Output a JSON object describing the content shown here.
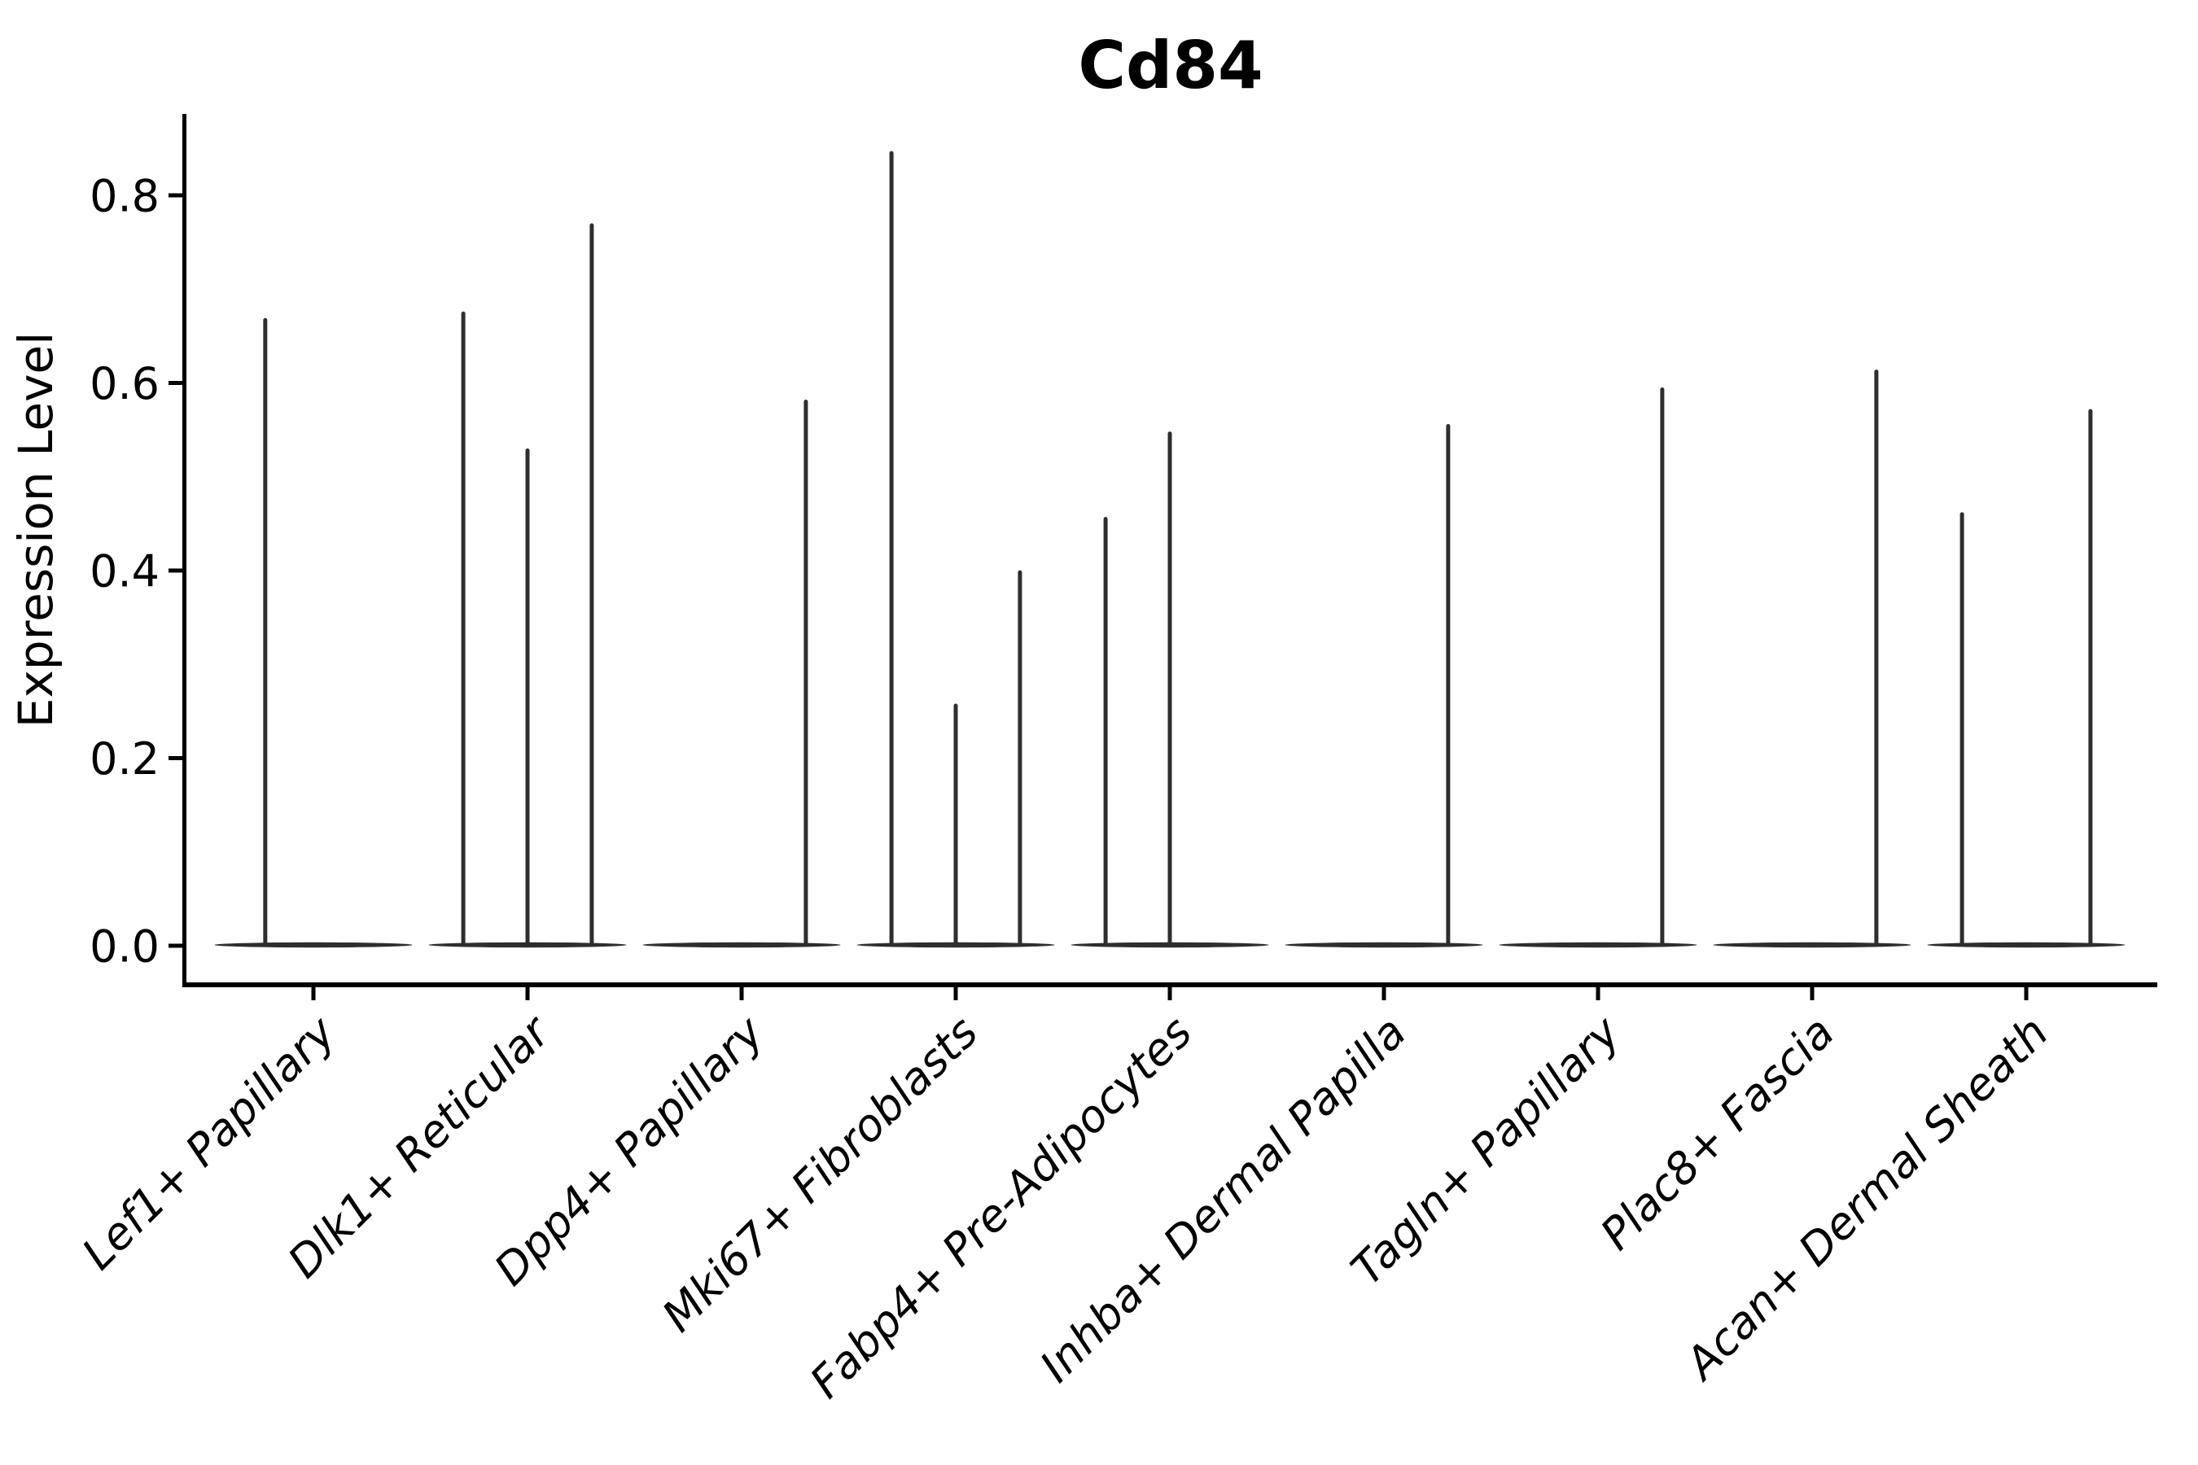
{
  "chart_data": {
    "type": "violin",
    "title": "Cd84",
    "ylabel": "Expression Level",
    "xlabel": "",
    "ylim": [
      0,
      0.887
    ],
    "yticks": [
      "0.0",
      "0.2",
      "0.4",
      "0.6",
      "0.8"
    ],
    "ytick_values": [
      0.0,
      0.2,
      0.4,
      0.6,
      0.8
    ],
    "grid": false,
    "legend_position": "none",
    "violin_color": "#2e2e2e",
    "axis_color": "#000000",
    "background_color": "#ffffff",
    "categories": [
      "Lef1+ Papillary",
      "Dlk1+ Reticular",
      "Dpp4+ Papillary",
      "Mki67+ Fibroblasts",
      "Fabp4+ Pre-Adipocytes",
      "Inhba+ Dermal Papilla",
      "Tagln+ Papillary",
      "Plac8+ Fascia",
      "Acan+ Dermal Sheath"
    ],
    "groups": [
      {
        "label": "Lef1+ Papillary",
        "violins": [
          {
            "pos": -0.225,
            "max": 0.667
          },
          {
            "pos": 0.225,
            "max": 0
          }
        ]
      },
      {
        "label": "Dlk1+ Reticular",
        "violins": [
          {
            "pos": -0.3,
            "max": 0.674
          },
          {
            "pos": 0,
            "max": 0.528
          },
          {
            "pos": 0.3,
            "max": 0.768
          }
        ]
      },
      {
        "label": "Dpp4+ Papillary",
        "violins": [
          {
            "pos": -0.3,
            "max": 0
          },
          {
            "pos": 0,
            "max": 0
          },
          {
            "pos": 0.3,
            "max": 0.58
          }
        ]
      },
      {
        "label": "Mki67+ Fibroblasts",
        "violins": [
          {
            "pos": -0.3,
            "max": 0.845
          },
          {
            "pos": 0,
            "max": 0.256
          },
          {
            "pos": 0.3,
            "max": 0.398
          }
        ]
      },
      {
        "label": "Fabp4+ Pre-Adipocytes",
        "violins": [
          {
            "pos": -0.3,
            "max": 0.455
          },
          {
            "pos": 0,
            "max": 0.546
          },
          {
            "pos": 0.3,
            "max": 0
          }
        ]
      },
      {
        "label": "Inhba+ Dermal Papilla",
        "violins": [
          {
            "pos": -0.3,
            "max": 0
          },
          {
            "pos": 0,
            "max": 0
          },
          {
            "pos": 0.3,
            "max": 0.554
          }
        ]
      },
      {
        "label": "Tagln+ Papillary",
        "violins": [
          {
            "pos": -0.3,
            "max": 0
          },
          {
            "pos": 0,
            "max": 0
          },
          {
            "pos": 0.3,
            "max": 0.593
          }
        ]
      },
      {
        "label": "Plac8+ Fascia",
        "violins": [
          {
            "pos": -0.3,
            "max": 0
          },
          {
            "pos": 0,
            "max": 0
          },
          {
            "pos": 0.3,
            "max": 0.612
          }
        ]
      },
      {
        "label": "Acan+ Dermal Sheath",
        "violins": [
          {
            "pos": -0.3,
            "max": 0.46
          },
          {
            "pos": 0,
            "max": 0
          },
          {
            "pos": 0.3,
            "max": 0.57
          }
        ]
      }
    ]
  }
}
